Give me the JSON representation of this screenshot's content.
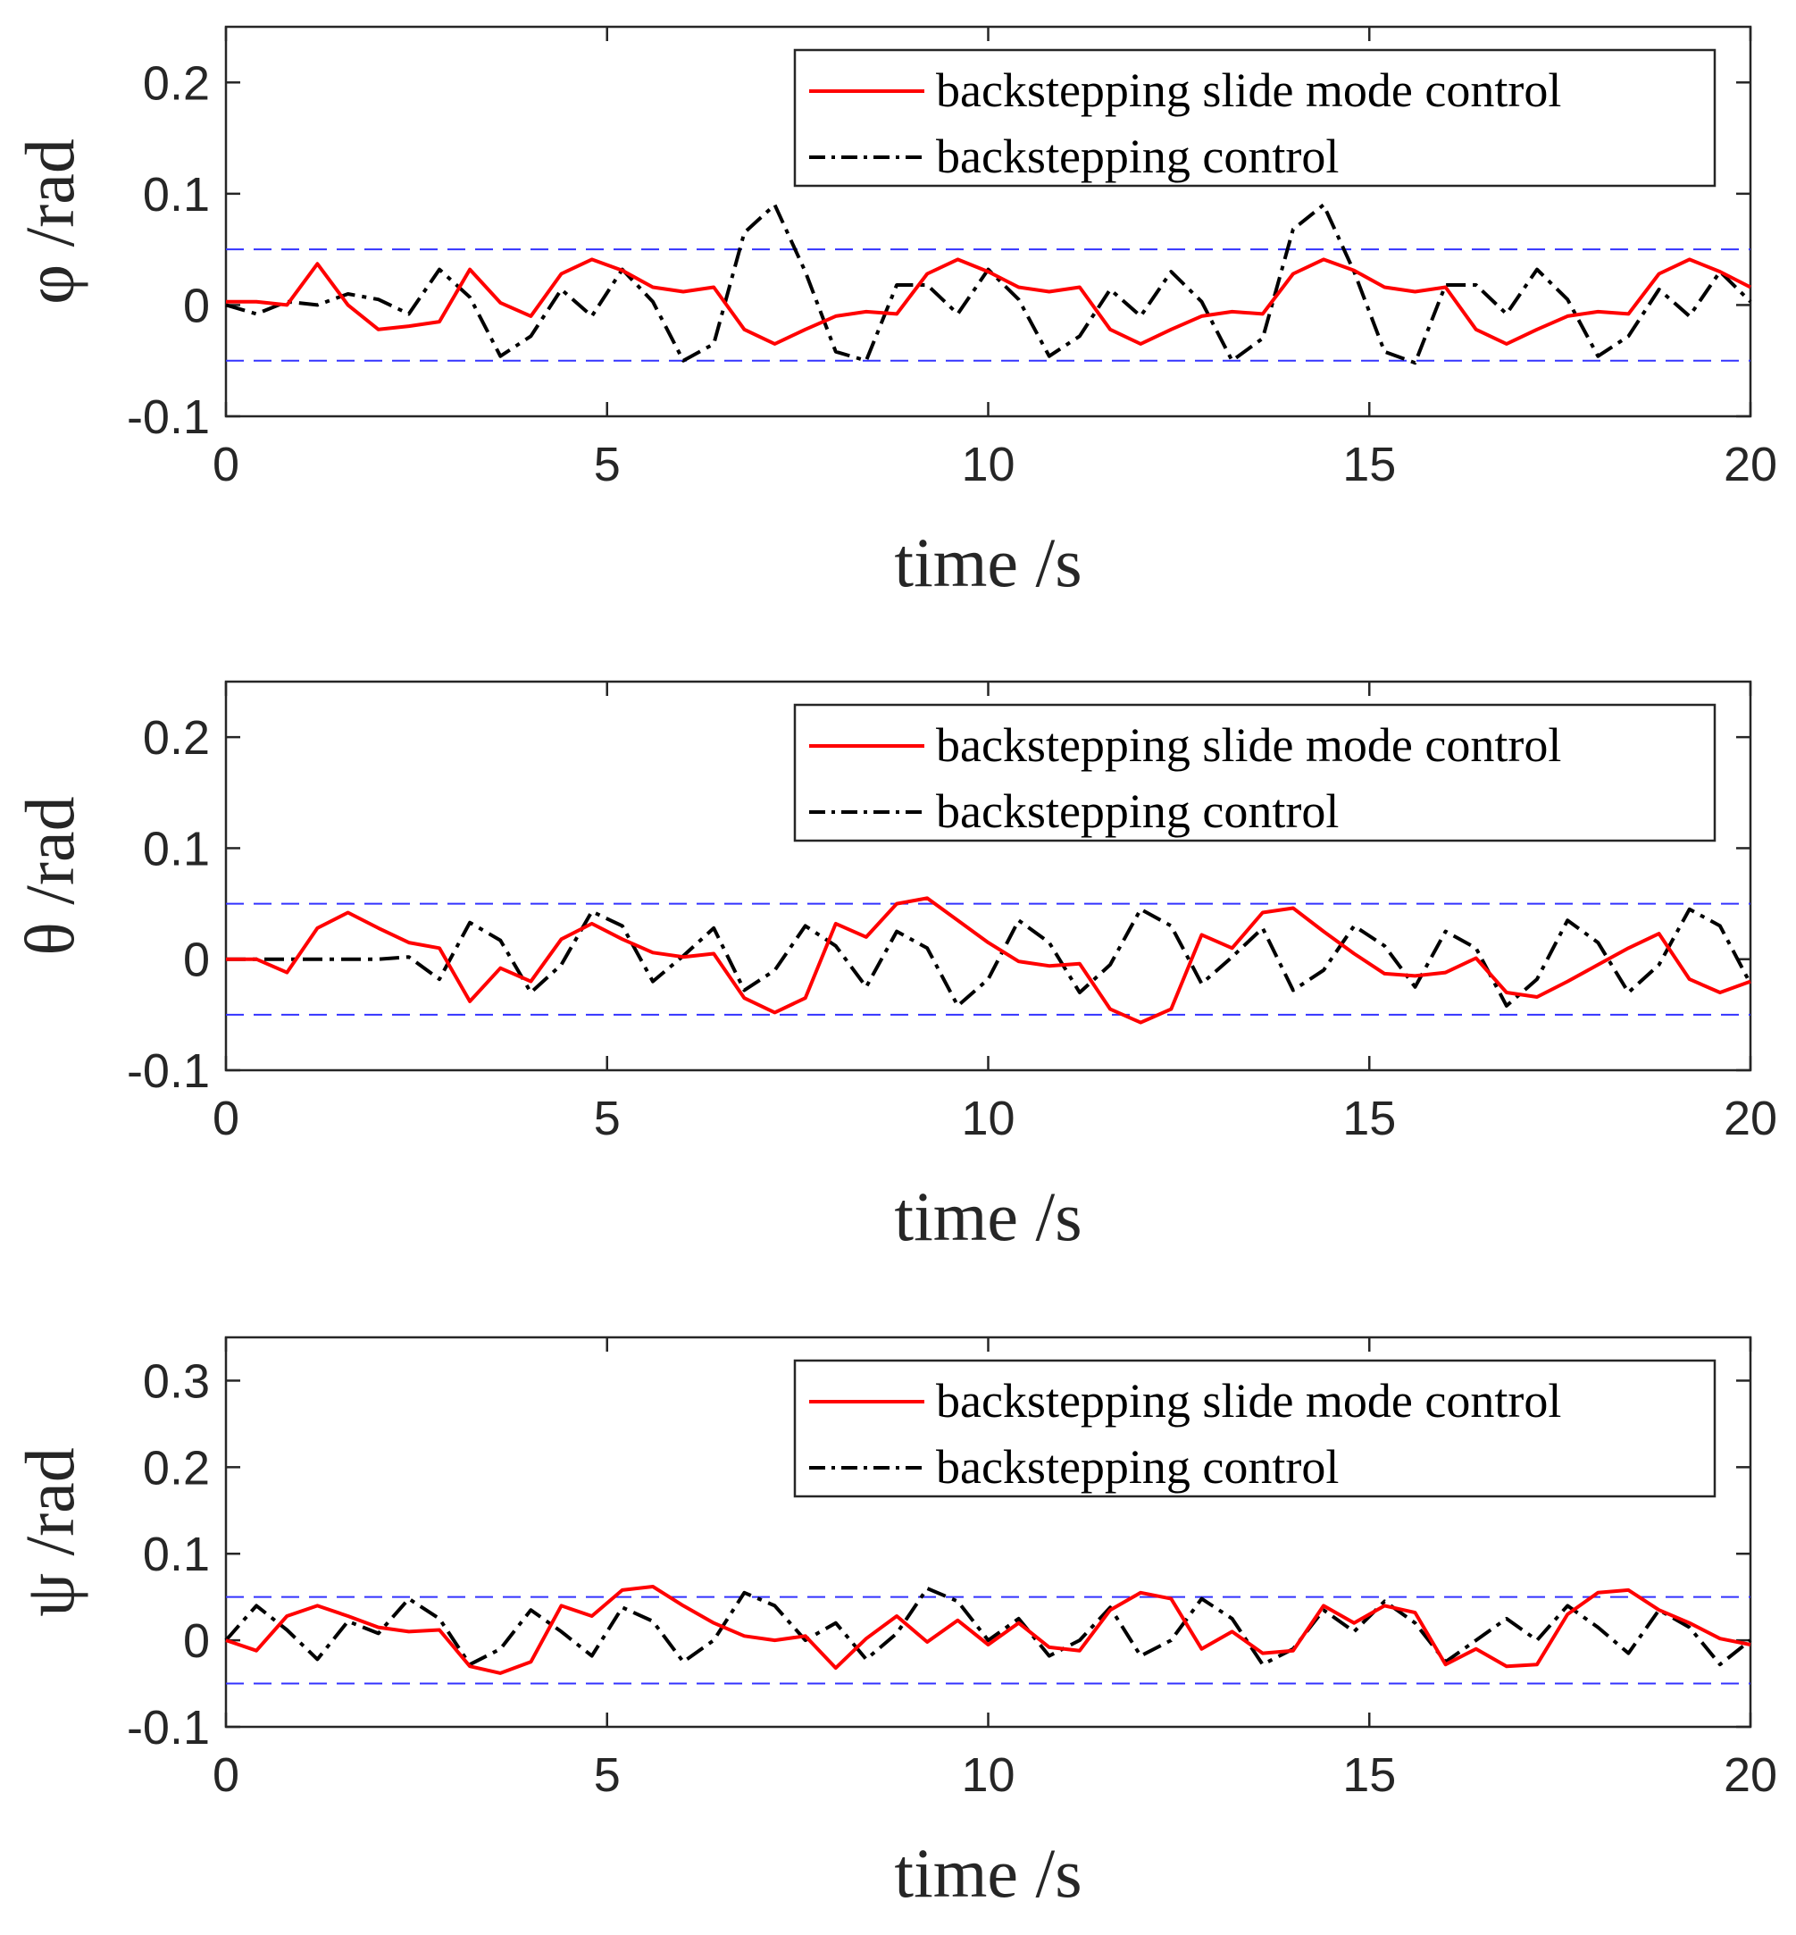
{
  "colors": {
    "smc": "#ff0000",
    "bc": "#000000",
    "bound": "#3333ff",
    "axis": "#262626"
  },
  "chart_data": [
    {
      "type": "line",
      "ylabel": "φ /rad",
      "xlabel": "time /s",
      "xlim": [
        0,
        20
      ],
      "ylim": [
        -0.1,
        0.25
      ],
      "xticks": [
        0,
        5,
        10,
        15,
        20
      ],
      "xtick_labels": [
        "0",
        "5",
        "10",
        "15",
        "20"
      ],
      "yticks": [
        -0.1,
        0,
        0.1,
        0.2
      ],
      "ytick_labels": [
        "-0.1",
        "0",
        "0.1",
        "0.2"
      ],
      "bounds": [
        0.05,
        -0.05
      ],
      "legend": [
        "backstepping slide mode control",
        "backstepping control"
      ],
      "legend_position": "top-right",
      "x": [
        0,
        0.4,
        0.8,
        1.2,
        1.6,
        2.0,
        2.4,
        2.8,
        3.2,
        3.6,
        4.0,
        4.4,
        4.8,
        5.2,
        5.6,
        6.0,
        6.4,
        6.8,
        7.2,
        7.6,
        8.0,
        8.4,
        8.8,
        9.2,
        9.6,
        10.0,
        10.4,
        10.8,
        11.2,
        11.6,
        12.0,
        12.4,
        12.8,
        13.2,
        13.6,
        14.0,
        14.4,
        14.8,
        15.2,
        15.6,
        16.0,
        16.4,
        16.8,
        17.2,
        17.6,
        18.0,
        18.4,
        18.8,
        19.2,
        19.6,
        20.0
      ],
      "series": [
        {
          "name": "backstepping slide mode control",
          "values": [
            0.003,
            0.003,
            0.0,
            0.037,
            0.0,
            -0.022,
            -0.019,
            -0.015,
            0.032,
            0.002,
            -0.01,
            0.028,
            0.041,
            0.031,
            0.016,
            0.012,
            0.016,
            -0.022,
            -0.035,
            -0.022,
            -0.01,
            -0.006,
            -0.008,
            0.028,
            0.041,
            0.03,
            0.016,
            0.012,
            0.016,
            -0.022,
            -0.035,
            -0.022,
            -0.01,
            -0.006,
            -0.008,
            0.028,
            0.041,
            0.031,
            0.016,
            0.012,
            0.016,
            -0.022,
            -0.035,
            -0.022,
            -0.01,
            -0.006,
            -0.008,
            0.028,
            0.041,
            0.03,
            0.016
          ]
        },
        {
          "name": "backstepping control",
          "values": [
            0.0,
            -0.008,
            0.003,
            0.0,
            0.01,
            0.005,
            -0.008,
            0.032,
            0.007,
            -0.046,
            -0.028,
            0.014,
            -0.01,
            0.032,
            0.003,
            -0.05,
            -0.035,
            0.065,
            0.09,
            0.03,
            -0.042,
            -0.05,
            0.018,
            0.018,
            -0.008,
            0.032,
            0.005,
            -0.046,
            -0.028,
            0.014,
            -0.01,
            0.03,
            0.003,
            -0.05,
            -0.03,
            0.068,
            0.09,
            0.03,
            -0.042,
            -0.052,
            0.018,
            0.018,
            -0.008,
            0.032,
            0.005,
            -0.046,
            -0.028,
            0.014,
            -0.01,
            0.03,
            0.003
          ]
        }
      ]
    },
    {
      "type": "line",
      "ylabel": "θ /rad",
      "xlabel": "time /s",
      "xlim": [
        0,
        20
      ],
      "ylim": [
        -0.1,
        0.25
      ],
      "xticks": [
        0,
        5,
        10,
        15,
        20
      ],
      "xtick_labels": [
        "0",
        "5",
        "10",
        "15",
        "20"
      ],
      "yticks": [
        -0.1,
        0,
        0.1,
        0.2
      ],
      "ytick_labels": [
        "-0.1",
        "0",
        "0.1",
        "0.2"
      ],
      "bounds": [
        0.05,
        -0.05
      ],
      "legend": [
        "backstepping slide mode control",
        "backstepping control"
      ],
      "legend_position": "top-right",
      "x": [
        0,
        0.4,
        0.8,
        1.2,
        1.6,
        2.0,
        2.4,
        2.8,
        3.2,
        3.6,
        4.0,
        4.4,
        4.8,
        5.2,
        5.6,
        6.0,
        6.4,
        6.8,
        7.2,
        7.6,
        8.0,
        8.4,
        8.8,
        9.2,
        9.6,
        10.0,
        10.4,
        10.8,
        11.2,
        11.6,
        12.0,
        12.4,
        12.8,
        13.2,
        13.6,
        14.0,
        14.4,
        14.8,
        15.2,
        15.6,
        16.0,
        16.4,
        16.8,
        17.2,
        17.6,
        18.0,
        18.4,
        18.8,
        19.2,
        19.6,
        20.0
      ],
      "series": [
        {
          "name": "backstepping slide mode control",
          "values": [
            0.0,
            0.0,
            -0.012,
            0.028,
            0.042,
            0.028,
            0.015,
            0.01,
            -0.038,
            -0.008,
            -0.02,
            0.018,
            0.032,
            0.018,
            0.006,
            0.002,
            0.005,
            -0.035,
            -0.048,
            -0.035,
            0.032,
            0.02,
            0.05,
            0.055,
            0.035,
            0.015,
            -0.002,
            -0.006,
            -0.004,
            -0.045,
            -0.057,
            -0.045,
            0.022,
            0.01,
            0.042,
            0.046,
            0.025,
            0.005,
            -0.013,
            -0.015,
            -0.012,
            0.001,
            -0.03,
            -0.034,
            -0.02,
            -0.005,
            0.01,
            0.023,
            -0.018,
            -0.03,
            -0.02
          ]
        },
        {
          "name": "backstepping control",
          "values": [
            0.0,
            0.0,
            0.0,
            0.0,
            0.0,
            0.0,
            0.002,
            -0.018,
            0.033,
            0.017,
            -0.03,
            -0.005,
            0.043,
            0.03,
            -0.02,
            0.003,
            0.028,
            -0.028,
            -0.01,
            0.03,
            0.012,
            -0.025,
            0.025,
            0.01,
            -0.042,
            -0.018,
            0.035,
            0.015,
            -0.03,
            -0.005,
            0.045,
            0.03,
            -0.022,
            0.002,
            0.028,
            -0.028,
            -0.01,
            0.03,
            0.012,
            -0.025,
            0.025,
            0.01,
            -0.042,
            -0.018,
            0.035,
            0.015,
            -0.03,
            -0.005,
            0.045,
            0.03,
            -0.022
          ]
        }
      ]
    },
    {
      "type": "line",
      "ylabel": "ψ /rad",
      "xlabel": "time /s",
      "xlim": [
        0,
        20
      ],
      "ylim": [
        -0.1,
        0.35
      ],
      "xticks": [
        0,
        5,
        10,
        15,
        20
      ],
      "xtick_labels": [
        "0",
        "5",
        "10",
        "15",
        "20"
      ],
      "yticks": [
        -0.1,
        0,
        0.1,
        0.2,
        0.3
      ],
      "ytick_labels": [
        "-0.1",
        "0",
        "0.1",
        "0.2",
        "0.3"
      ],
      "bounds": [
        0.05,
        -0.05
      ],
      "legend": [
        "backstepping slide mode control",
        "backstepping control"
      ],
      "legend_position": "top-right",
      "x": [
        0,
        0.4,
        0.8,
        1.2,
        1.6,
        2.0,
        2.4,
        2.8,
        3.2,
        3.6,
        4.0,
        4.4,
        4.8,
        5.2,
        5.6,
        6.0,
        6.4,
        6.8,
        7.2,
        7.6,
        8.0,
        8.4,
        8.8,
        9.2,
        9.6,
        10.0,
        10.4,
        10.8,
        11.2,
        11.6,
        12.0,
        12.4,
        12.8,
        13.2,
        13.6,
        14.0,
        14.4,
        14.8,
        15.2,
        15.6,
        16.0,
        16.4,
        16.8,
        17.2,
        17.6,
        18.0,
        18.4,
        18.8,
        19.2,
        19.6,
        20.0
      ],
      "series": [
        {
          "name": "backstepping slide mode control",
          "values": [
            0.0,
            -0.012,
            0.028,
            0.04,
            0.028,
            0.015,
            0.01,
            0.012,
            -0.03,
            -0.038,
            -0.025,
            0.04,
            0.028,
            0.058,
            0.062,
            0.04,
            0.02,
            0.005,
            0.0,
            0.005,
            -0.032,
            0.002,
            0.028,
            -0.002,
            0.023,
            -0.005,
            0.02,
            -0.008,
            -0.012,
            0.035,
            0.055,
            0.048,
            -0.01,
            0.01,
            -0.015,
            -0.012,
            0.04,
            0.02,
            0.04,
            0.032,
            -0.028,
            -0.01,
            -0.03,
            -0.028,
            0.03,
            0.055,
            0.058,
            0.035,
            0.02,
            0.002,
            -0.005
          ]
        },
        {
          "name": "backstepping control",
          "values": [
            0.0,
            0.04,
            0.012,
            -0.022,
            0.022,
            0.008,
            0.048,
            0.025,
            -0.028,
            -0.01,
            0.035,
            0.01,
            -0.018,
            0.038,
            0.022,
            -0.025,
            0.0,
            0.055,
            0.04,
            0.0,
            0.02,
            -0.022,
            0.008,
            0.06,
            0.045,
            0.0,
            0.025,
            -0.018,
            0.0,
            0.038,
            -0.018,
            0.0,
            0.048,
            0.025,
            -0.028,
            -0.01,
            0.035,
            0.01,
            0.045,
            0.02,
            -0.025,
            0.0,
            0.025,
            0.0,
            0.04,
            0.015,
            -0.015,
            0.035,
            0.015,
            -0.028,
            0.0
          ]
        }
      ]
    }
  ]
}
